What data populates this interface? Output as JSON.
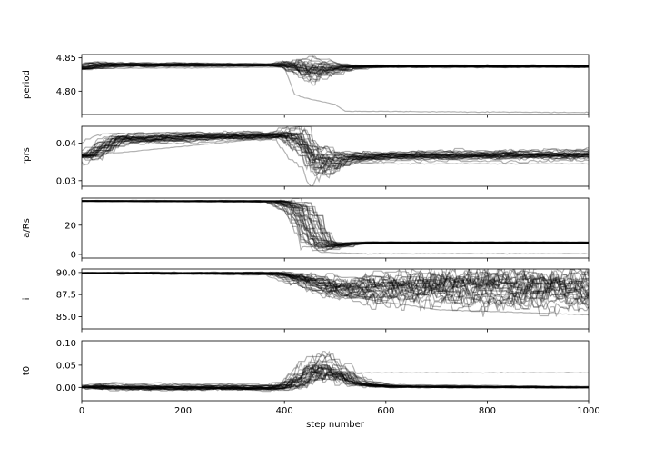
{
  "chart_data": {
    "type": "line",
    "xlabel": "step number",
    "x_range": [
      0,
      1000
    ],
    "x_ticks": [
      "0",
      "200",
      "400",
      "600",
      "800",
      "1000"
    ],
    "x_tick_values": [
      0,
      200,
      400,
      600,
      800,
      1000
    ],
    "line_color": "#000000",
    "line_opacity": 0.3,
    "grid": false,
    "legend": "none",
    "panels": [
      {
        "ylabel": "period",
        "ylim": [
          4.765,
          4.855
        ],
        "y_ticks": [
          "4.85",
          "4.80"
        ],
        "y_tick_values": [
          4.85,
          4.8
        ],
        "series_profile": {
          "x": [
            0,
            20,
            60,
            380,
            410,
            440,
            470,
            520,
            560,
            1000
          ],
          "y": [
            4.834,
            4.838,
            4.839,
            4.839,
            4.836,
            4.826,
            4.832,
            4.836,
            4.837,
            4.837
          ],
          "spread": [
            0.001,
            0.003,
            0.002,
            0.001,
            0.006,
            0.012,
            0.008,
            0.002,
            0.001,
            0.001
          ]
        },
        "outlier": {
          "x": [
            0,
            400,
            420,
            440,
            500,
            520,
            1000
          ],
          "y": [
            4.834,
            4.836,
            4.795,
            4.79,
            4.78,
            4.77,
            4.768
          ]
        }
      },
      {
        "ylabel": "rprs",
        "ylim": [
          0.0285,
          0.0445
        ],
        "y_ticks": [
          "0.04",
          "0.03"
        ],
        "y_tick_values": [
          0.04,
          0.03
        ],
        "series_profile": {
          "x": [
            0,
            20,
            60,
            200,
            380,
            420,
            460,
            520,
            600,
            1000
          ],
          "y": [
            0.0365,
            0.0375,
            0.041,
            0.0415,
            0.042,
            0.041,
            0.034,
            0.036,
            0.0365,
            0.0368
          ],
          "spread": [
            0.0003,
            0.0015,
            0.0008,
            0.0006,
            0.0005,
            0.002,
            0.0025,
            0.0008,
            0.0006,
            0.0007
          ]
        },
        "outlier": {
          "x": [
            0,
            420,
            460,
            520,
            1000
          ],
          "y": [
            0.0365,
            0.042,
            0.035,
            0.0345,
            0.0345
          ]
        }
      },
      {
        "ylabel": "a/Rs",
        "ylim": [
          -2.5,
          38.5
        ],
        "y_ticks": [
          "20",
          "0"
        ],
        "y_tick_values": [
          20,
          0
        ],
        "series_profile": {
          "x": [
            0,
            380,
            420,
            450,
            480,
            520,
            560,
            1000
          ],
          "y": [
            36.5,
            36.3,
            32.0,
            15.0,
            5.0,
            7.0,
            8.0,
            8.0
          ],
          "spread": [
            0.2,
            0.3,
            3.0,
            8.0,
            2.0,
            0.5,
            0.3,
            0.3
          ]
        },
        "outlier": {
          "x": [
            0,
            410,
            440,
            470,
            560,
            1000
          ],
          "y": [
            36.5,
            36.0,
            10.0,
            1.5,
            0.5,
            0.5
          ]
        }
      },
      {
        "ylabel": "i",
        "ylim": [
          83.6,
          90.4
        ],
        "y_ticks": [
          "90.0",
          "87.5",
          "85.0"
        ],
        "y_tick_values": [
          90.0,
          87.5,
          85.0
        ],
        "series_profile": {
          "x": [
            0,
            380,
            430,
            500,
            600,
            800,
            1000
          ],
          "y": [
            89.95,
            89.9,
            89.2,
            88.2,
            88.5,
            88.5,
            88.3
          ],
          "spread": [
            0.05,
            0.1,
            0.6,
            0.8,
            1.3,
            1.5,
            1.6
          ]
        },
        "outlier": {
          "x": [
            0,
            400,
            500,
            700,
            1000
          ],
          "y": [
            89.95,
            89.8,
            87.5,
            85.8,
            85.2
          ]
        }
      },
      {
        "ylabel": "t0",
        "ylim": [
          -0.03,
          0.105
        ],
        "y_ticks": [
          "0.10",
          "0.05",
          "0.00"
        ],
        "y_tick_values": [
          0.1,
          0.05,
          0.0
        ],
        "series_profile": {
          "x": [
            0,
            20,
            60,
            380,
            420,
            450,
            470,
            500,
            540,
            600,
            1000
          ],
          "y": [
            0.0,
            0.002,
            0.0,
            -0.001,
            0.015,
            0.04,
            0.045,
            0.03,
            0.008,
            0.002,
            0.0
          ],
          "spread": [
            0.001,
            0.005,
            0.004,
            0.004,
            0.012,
            0.02,
            0.02,
            0.015,
            0.006,
            0.002,
            0.001
          ]
        },
        "outlier": {
          "x": [
            0,
            420,
            470,
            520,
            560,
            1000
          ],
          "y": [
            0.0,
            0.005,
            0.045,
            0.032,
            0.033,
            0.033
          ]
        }
      }
    ]
  }
}
